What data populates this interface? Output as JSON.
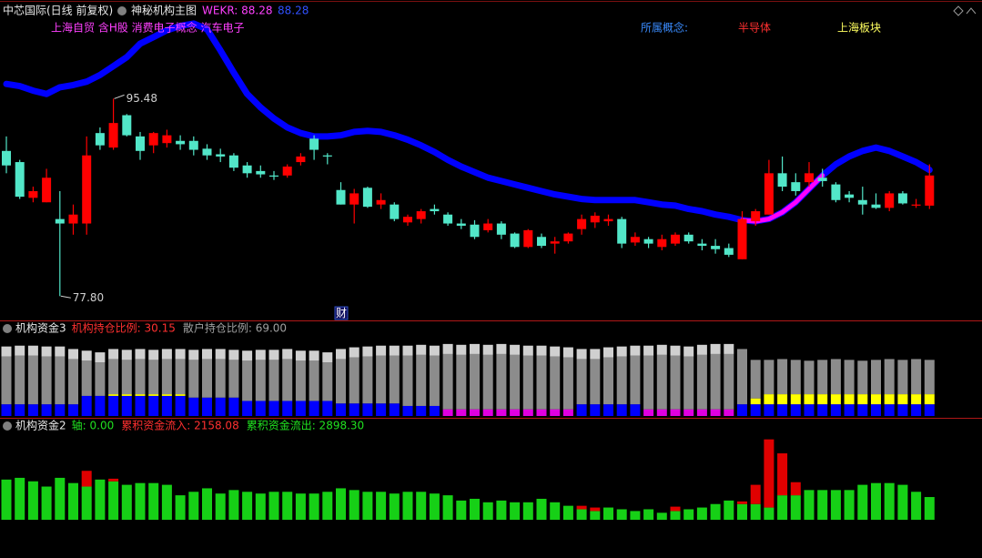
{
  "header": {
    "stock": "中芯国际(日线 前复权)",
    "template": "神秘机构主图",
    "indicator": "WEKR: 88.28",
    "indicator_value": "88.28"
  },
  "concepts": {
    "tags": "上海自贸 含H股 消费电子概念 汽车电子",
    "label": "所属概念:",
    "industry": "半导体",
    "region": "上海板块"
  },
  "marker": "财",
  "chart_data": [
    {
      "type": "candlestick",
      "up_color": "#ff0000",
      "down_color": "#52e6c8",
      "ylim": [
        76.6,
        103.5
      ],
      "open": [
        90.8,
        89.8,
        86.6,
        86.2,
        84.7,
        84.3,
        84.3,
        92.4,
        91.1,
        94.0,
        92.1,
        91.3,
        91.5,
        91.7,
        91.7,
        91.0,
        90.5,
        90.4,
        89.5,
        89.0,
        88.6,
        88.6,
        89.8,
        91.9,
        90.4,
        87.3,
        86.0,
        87.5,
        86.0,
        86.0,
        84.4,
        84.7,
        85.6,
        85.1,
        84.3,
        84.2,
        83.7,
        84.3,
        83.4,
        82.2,
        83.1,
        82.5,
        82.7,
        83.8,
        84.4,
        84.5,
        84.7,
        82.6,
        82.9,
        82.2,
        82.5,
        83.3,
        82.5,
        82.3,
        82.1,
        81.1,
        84.5,
        85.1,
        88.8,
        88.0,
        88.0,
        88.4,
        87.8,
        86.9,
        86.4,
        86.0,
        85.7,
        87.0,
        85.9,
        85.9
      ],
      "high": [
        92.1,
        90.0,
        87.6,
        89.2,
        87.2,
        86.0,
        92.1,
        92.9,
        95.48,
        94.1,
        92.5,
        92.5,
        92.7,
        92.2,
        92.1,
        91.4,
        91.0,
        90.6,
        89.8,
        89.5,
        89.0,
        89.6,
        90.6,
        92.2,
        90.6,
        88.0,
        87.4,
        87.6,
        87.0,
        86.2,
        85.1,
        85.6,
        86.0,
        85.3,
        84.7,
        84.6,
        84.7,
        84.5,
        83.5,
        83.8,
        83.4,
        83.1,
        83.5,
        85.1,
        85.3,
        85.1,
        84.9,
        83.5,
        83.1,
        83.3,
        83.5,
        83.5,
        82.9,
        82.9,
        82.5,
        85.4,
        85.6,
        90.0,
        90.3,
        88.8,
        89.8,
        89.2,
        88.0,
        87.2,
        87.6,
        87.0,
        87.2,
        87.2,
        86.5,
        89.6
      ],
      "low": [
        88.8,
        86.5,
        86.2,
        86.2,
        77.8,
        83.3,
        83.3,
        90.9,
        90.9,
        92.1,
        90.0,
        90.6,
        91.1,
        90.9,
        90.4,
        90.0,
        89.8,
        89.0,
        88.4,
        88.4,
        88.2,
        88.4,
        89.5,
        90.0,
        89.6,
        86.0,
        84.3,
        85.7,
        85.6,
        84.5,
        84.1,
        84.3,
        85.1,
        84.1,
        83.8,
        82.9,
        83.5,
        82.9,
        82.1,
        82.1,
        82.1,
        81.6,
        82.5,
        83.3,
        83.9,
        84.1,
        82.1,
        82.3,
        82.1,
        81.9,
        82.3,
        82.5,
        81.9,
        81.6,
        81.3,
        81.1,
        84.1,
        85.1,
        87.2,
        86.8,
        87.6,
        87.6,
        86.2,
        86.2,
        85.1,
        85.6,
        85.4,
        86.0,
        85.7,
        85.6
      ],
      "close": [
        89.5,
        86.7,
        87.2,
        88.4,
        84.3,
        85.1,
        90.4,
        91.3,
        93.3,
        92.2,
        90.8,
        92.4,
        92.2,
        91.4,
        90.9,
        90.4,
        90.3,
        89.3,
        88.8,
        88.7,
        88.5,
        89.4,
        90.3,
        90.9,
        90.3,
        86.0,
        87.0,
        85.8,
        86.4,
        84.7,
        84.9,
        85.4,
        85.4,
        84.3,
        84.1,
        83.1,
        84.3,
        83.3,
        82.2,
        83.7,
        82.3,
        82.7,
        83.4,
        84.7,
        85.0,
        84.7,
        82.5,
        83.1,
        82.5,
        82.9,
        83.3,
        82.7,
        82.3,
        82.0,
        81.5,
        84.7,
        85.4,
        88.8,
        87.6,
        87.2,
        88.8,
        88.1,
        86.4,
        86.6,
        86.0,
        85.7,
        87.0,
        86.1,
        86.0,
        88.6
      ],
      "annotations": [
        {
          "value": 95.48,
          "label": "95.48"
        },
        {
          "value": 77.8,
          "label": "77.80"
        }
      ],
      "series": [
        {
          "color": "#0000ff",
          "values": [
            96.8,
            96.6,
            96.2,
            95.9,
            96.5,
            96.7,
            97.0,
            97.6,
            98.4,
            99.2,
            100.4,
            101.0,
            101.6,
            102.0,
            102.2,
            101.7,
            99.8,
            97.8,
            95.9,
            94.7,
            93.7,
            92.9,
            92.4,
            92.1,
            92.1,
            92.2,
            92.5,
            92.6,
            92.5,
            92.2,
            91.8,
            91.3,
            90.7,
            90.0,
            89.4,
            88.9,
            88.4,
            88.1,
            87.8,
            87.5,
            87.2,
            86.9,
            86.7,
            86.5,
            86.4,
            86.4,
            86.4,
            86.4,
            86.2,
            86.0,
            85.9,
            85.6,
            85.4,
            85.1,
            84.9,
            84.6,
            84.5,
            84.7,
            85.3,
            86.2,
            87.4,
            88.6,
            89.6,
            90.3,
            90.8,
            91.1,
            90.8,
            90.3,
            89.8,
            89.1
          ]
        },
        {
          "color": "#ff00ff",
          "values": [
            null,
            null,
            null,
            null,
            null,
            null,
            null,
            null,
            null,
            null,
            null,
            null,
            null,
            null,
            null,
            null,
            null,
            null,
            null,
            null,
            null,
            null,
            null,
            null,
            null,
            null,
            null,
            null,
            null,
            null,
            null,
            null,
            null,
            null,
            null,
            null,
            null,
            null,
            null,
            null,
            null,
            null,
            null,
            null,
            null,
            null,
            null,
            null,
            null,
            null,
            null,
            null,
            null,
            null,
            null,
            84.6,
            84.5,
            84.7,
            85.3,
            86.2,
            87.4,
            88.6,
            null,
            null,
            null,
            null,
            null,
            null,
            null,
            null
          ]
        }
      ]
    },
    {
      "type": "stacked_bar",
      "title": "机构资金3",
      "ylim": [
        0,
        100
      ],
      "legend": [
        {
          "text": "机构持仓比例: 30.15",
          "color": "#ff3030"
        },
        {
          "text": "散户持仓比例: 69.00",
          "color": "#a0a0a0"
        }
      ],
      "series": [
        {
          "color": "#0000ff",
          "values": [
            14,
            14,
            14,
            14,
            14,
            14,
            24,
            24,
            24,
            24,
            24,
            24,
            24,
            24,
            22,
            22,
            22,
            22,
            18,
            18,
            18,
            18,
            18,
            18,
            18,
            15,
            15,
            15,
            15,
            15,
            12,
            12,
            12,
            null,
            null,
            null,
            null,
            null,
            null,
            null,
            null,
            null,
            null,
            14,
            14,
            14,
            14,
            14,
            null,
            null,
            null,
            null,
            null,
            null,
            null,
            14,
            14,
            14,
            14,
            14,
            14,
            14,
            14,
            14,
            14,
            14,
            14,
            14,
            14,
            14
          ]
        },
        {
          "color": "#e000e0",
          "values": [
            null,
            null,
            null,
            null,
            null,
            null,
            null,
            null,
            null,
            null,
            null,
            null,
            null,
            null,
            null,
            null,
            null,
            null,
            null,
            null,
            null,
            null,
            null,
            null,
            null,
            null,
            null,
            null,
            null,
            null,
            null,
            null,
            null,
            8,
            8,
            8,
            8,
            8,
            8,
            8,
            8,
            8,
            8,
            null,
            null,
            null,
            null,
            null,
            8,
            8,
            8,
            8,
            8,
            8,
            8,
            null,
            null,
            null,
            null,
            null,
            null,
            null,
            null,
            null,
            null,
            null,
            null,
            null,
            null,
            null
          ]
        },
        {
          "color": "#ffff00",
          "values": [
            null,
            null,
            null,
            null,
            null,
            null,
            null,
            null,
            2,
            2,
            2,
            2,
            2,
            2,
            null,
            null,
            null,
            null,
            null,
            null,
            null,
            null,
            null,
            null,
            null,
            null,
            null,
            null,
            null,
            null,
            null,
            null,
            null,
            null,
            null,
            null,
            null,
            null,
            null,
            null,
            null,
            null,
            null,
            null,
            null,
            null,
            null,
            null,
            null,
            null,
            null,
            null,
            null,
            null,
            null,
            null,
            7,
            12,
            12,
            12,
            12,
            12,
            12,
            12,
            12,
            12,
            12,
            12,
            12,
            12
          ]
        },
        {
          "color": "#8c8c8c",
          "values": [
            57,
            58,
            58,
            57,
            57,
            54,
            42,
            40,
            42,
            41,
            42,
            41,
            42,
            42,
            45,
            46,
            46,
            45,
            48,
            49,
            49,
            50,
            48,
            48,
            46,
            53,
            55,
            56,
            57,
            57,
            60,
            61,
            60,
            66,
            65,
            66,
            65,
            66,
            65,
            64,
            64,
            63,
            62,
            54,
            54,
            56,
            57,
            58,
            64,
            65,
            64,
            63,
            65,
            66,
            66,
            66,
            46,
            41,
            42,
            41,
            40,
            41,
            42,
            41,
            40,
            41,
            42,
            41,
            42,
            41
          ]
        },
        {
          "color": "#d0d0d0",
          "values": [
            12,
            12,
            12,
            12,
            12,
            12,
            12,
            12,
            12,
            12,
            12,
            12,
            12,
            12,
            12,
            12,
            12,
            12,
            12,
            12,
            12,
            12,
            12,
            12,
            12,
            12,
            12,
            12,
            12,
            12,
            12,
            12,
            12,
            12,
            12,
            12,
            12,
            12,
            12,
            12,
            12,
            12,
            12,
            12,
            12,
            12,
            12,
            12,
            12,
            12,
            12,
            12,
            12,
            12,
            12,
            null,
            null,
            null,
            null,
            null,
            null,
            null,
            null,
            null,
            null,
            null,
            null,
            null,
            null,
            null
          ]
        }
      ]
    },
    {
      "type": "stacked_bar",
      "title": "机构资金2",
      "ylim": [
        0,
        100
      ],
      "legend": [
        {
          "text": "轴: 0.00",
          "color": "#20e020"
        },
        {
          "text": "累积资金流入: 2158.08",
          "color": "#ff3030"
        },
        {
          "text": "累积资金流出: 2898.30",
          "color": "#20e020"
        }
      ],
      "series": [
        {
          "color": "#16d016",
          "values": [
            46,
            48,
            44,
            38,
            48,
            42,
            38,
            46,
            44,
            40,
            42,
            42,
            40,
            28,
            32,
            36,
            30,
            34,
            32,
            30,
            32,
            32,
            30,
            30,
            32,
            36,
            34,
            32,
            32,
            30,
            32,
            32,
            30,
            28,
            22,
            24,
            20,
            22,
            20,
            20,
            24,
            20,
            16,
            12,
            10,
            14,
            12,
            10,
            12,
            8,
            10,
            12,
            14,
            18,
            22,
            18,
            18,
            14,
            28,
            28,
            34,
            34,
            34,
            34,
            40,
            42,
            42,
            40,
            32,
            26
          ]
        },
        {
          "color": "#e00000",
          "values": [
            null,
            null,
            null,
            null,
            null,
            null,
            18,
            null,
            3,
            null,
            null,
            null,
            null,
            null,
            null,
            null,
            null,
            null,
            null,
            null,
            null,
            null,
            null,
            null,
            null,
            null,
            null,
            null,
            null,
            null,
            null,
            null,
            null,
            null,
            null,
            null,
            null,
            null,
            null,
            null,
            null,
            null,
            null,
            4,
            4,
            null,
            null,
            null,
            null,
            null,
            5,
            null,
            null,
            null,
            null,
            3,
            22,
            78,
            48,
            15,
            null,
            null,
            null,
            null,
            null,
            null,
            null,
            null,
            null,
            null
          ]
        }
      ]
    }
  ]
}
